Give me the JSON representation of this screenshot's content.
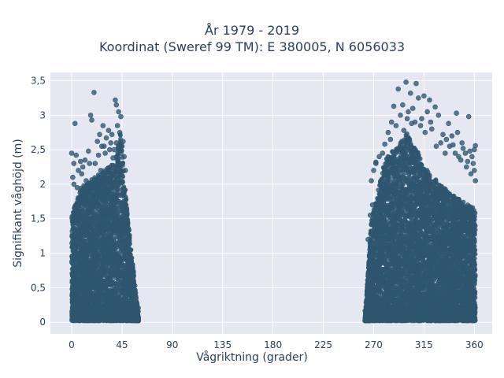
{
  "chart_data": {
    "type": "scatter",
    "title_lines": [
      "År 1979 - 2019",
      "Koordinat (Sweref 99 TM): E 380005, N 6056033"
    ],
    "xlabel": "Vågriktning (grader)",
    "ylabel": "Signifikant våghöjd (m)",
    "xlim": [
      -19,
      376
    ],
    "ylim": [
      -0.17,
      3.62
    ],
    "xticks": [
      0,
      45,
      90,
      135,
      180,
      225,
      270,
      315,
      360
    ],
    "xtick_labels": [
      "0",
      "45",
      "90",
      "135",
      "180",
      "225",
      "270",
      "315",
      "360"
    ],
    "yticks": [
      0,
      0.5,
      1,
      1.5,
      2,
      2.5,
      3,
      3.5
    ],
    "ytick_labels": [
      "0",
      "0,5",
      "1",
      "1,5",
      "2",
      "2,5",
      "3",
      "3,5"
    ],
    "grid": true,
    "marker_color": "#2f5670",
    "clusters": [
      {
        "direction_range": [
          0,
          60
        ],
        "height_range": [
          0,
          3.33
        ]
      },
      {
        "direction_range": [
          262,
          361
        ],
        "height_range": [
          0,
          3.48
        ]
      }
    ],
    "points": [
      [
        20,
        3.33
      ],
      [
        39,
        3.22
      ],
      [
        40,
        3.15
      ],
      [
        3,
        2.88
      ],
      [
        17,
        3.0
      ],
      [
        18,
        2.93
      ],
      [
        42,
        3.05
      ],
      [
        44,
        2.98
      ],
      [
        41,
        2.85
      ],
      [
        28,
        2.85
      ],
      [
        33,
        2.78
      ],
      [
        25,
        2.72
      ],
      [
        12,
        2.35
      ],
      [
        8,
        2.33
      ],
      [
        15,
        2.48
      ],
      [
        4,
        2.42
      ],
      [
        2,
        2.3
      ],
      [
        6,
        2.2
      ],
      [
        0,
        2.45
      ],
      [
        1,
        2.1
      ],
      [
        10,
        2.25
      ],
      [
        23,
        2.62
      ],
      [
        31,
        2.67
      ],
      [
        36,
        2.72
      ],
      [
        45,
        2.55
      ],
      [
        47,
        2.4
      ],
      [
        43,
        2.75
      ],
      [
        46,
        2.62
      ],
      [
        38,
        2.5
      ],
      [
        27,
        2.55
      ],
      [
        13,
        2.05
      ],
      [
        5,
        1.95
      ],
      [
        48,
        2.2
      ],
      [
        21,
        2.3
      ],
      [
        35,
        2.6
      ],
      [
        30,
        2.45
      ],
      [
        2,
        2.0
      ],
      [
        9,
        2.15
      ],
      [
        16,
        2.3
      ],
      [
        24,
        2.42
      ],
      [
        29,
        2.55
      ],
      [
        34,
        2.5
      ],
      [
        40,
        2.6
      ],
      [
        44,
        2.45
      ],
      [
        42,
        2.3
      ],
      [
        37,
        2.38
      ],
      [
        26,
        2.2
      ],
      [
        299,
        3.48
      ],
      [
        308,
        3.46
      ],
      [
        292,
        3.38
      ],
      [
        303,
        3.32
      ],
      [
        315,
        3.28
      ],
      [
        320,
        3.22
      ],
      [
        310,
        3.25
      ],
      [
        296,
        3.15
      ],
      [
        288,
        3.13
      ],
      [
        305,
        3.1
      ],
      [
        318,
        3.05
      ],
      [
        328,
        3.0
      ],
      [
        325,
        3.12
      ],
      [
        344,
        3.03
      ],
      [
        355,
        2.98
      ],
      [
        337,
        2.88
      ],
      [
        345,
        2.75
      ],
      [
        350,
        2.52
      ],
      [
        352,
        2.45
      ],
      [
        356,
        2.48
      ],
      [
        358,
        2.4
      ],
      [
        360,
        2.5
      ],
      [
        361,
        2.56
      ],
      [
        354,
        2.33
      ],
      [
        359,
        2.3
      ],
      [
        360,
        2.2
      ],
      [
        361,
        2.05
      ],
      [
        341,
        2.57
      ],
      [
        335,
        2.65
      ],
      [
        332,
        2.72
      ],
      [
        312,
        2.85
      ],
      [
        300,
        2.95
      ],
      [
        285,
        2.65
      ],
      [
        280,
        2.58
      ],
      [
        278,
        2.45
      ],
      [
        275,
        2.4
      ],
      [
        272,
        2.32
      ],
      [
        270,
        2.2
      ],
      [
        268,
        2.05
      ],
      [
        272,
        2.3
      ],
      [
        283,
        2.75
      ],
      [
        290,
        2.85
      ],
      [
        294,
        3.0
      ],
      [
        301,
        3.05
      ],
      [
        307,
        2.9
      ],
      [
        313,
        2.95
      ],
      [
        322,
        2.8
      ],
      [
        330,
        2.6
      ],
      [
        338,
        2.55
      ],
      [
        346,
        2.4
      ],
      [
        340,
        2.7
      ],
      [
        326,
        2.55
      ],
      [
        316,
        2.75
      ],
      [
        343,
        2.45
      ],
      [
        348,
        2.35
      ],
      [
        353,
        2.25
      ],
      [
        357,
        2.15
      ],
      [
        349,
        2.6
      ],
      [
        334,
        2.45
      ],
      [
        286,
        2.9
      ],
      [
        297,
        2.78
      ],
      [
        304,
        2.88
      ],
      [
        321,
        2.9
      ],
      [
        265,
        1.2
      ],
      [
        267,
        1.55
      ],
      [
        269,
        1.7
      ]
    ]
  }
}
